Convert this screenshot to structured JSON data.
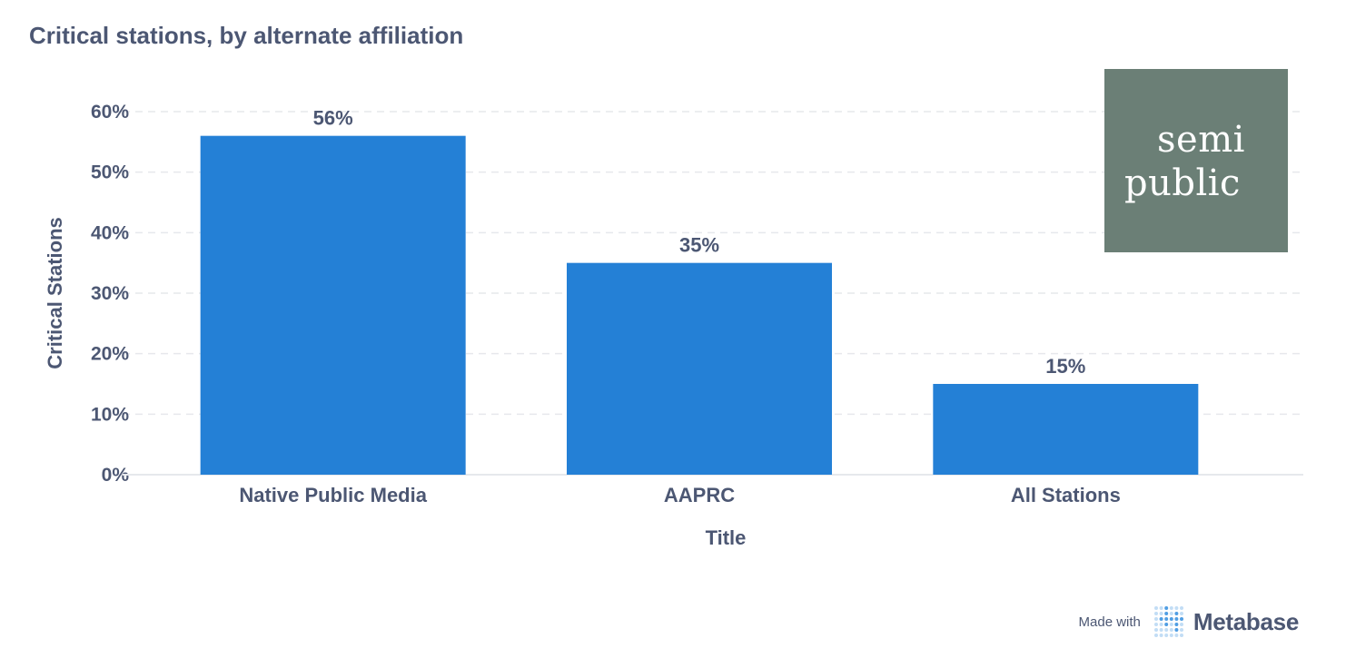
{
  "header": {
    "title": "Critical stations, by alternate affiliation"
  },
  "logo": {
    "line1": "semi",
    "line2": "public",
    "background": "#6b7f76"
  },
  "footer": {
    "made_with": "Made with",
    "brand": "Metabase",
    "accent": "#509ee3"
  },
  "chart_data": {
    "type": "bar",
    "categories": [
      "Native Public Media",
      "AAPRC",
      "All Stations"
    ],
    "values": [
      56,
      35,
      15
    ],
    "data_labels": [
      "56%",
      "35%",
      "15%"
    ],
    "xlabel": "Title",
    "ylabel": "Critical Stations",
    "ylim": [
      0,
      60
    ],
    "yticks": [
      0,
      10,
      20,
      30,
      40,
      50,
      60
    ],
    "ytick_labels": [
      "0%",
      "10%",
      "20%",
      "30%",
      "40%",
      "50%",
      "60%"
    ],
    "grid": true,
    "bar_color": "#2480d6",
    "text_color": "#4c5773"
  }
}
